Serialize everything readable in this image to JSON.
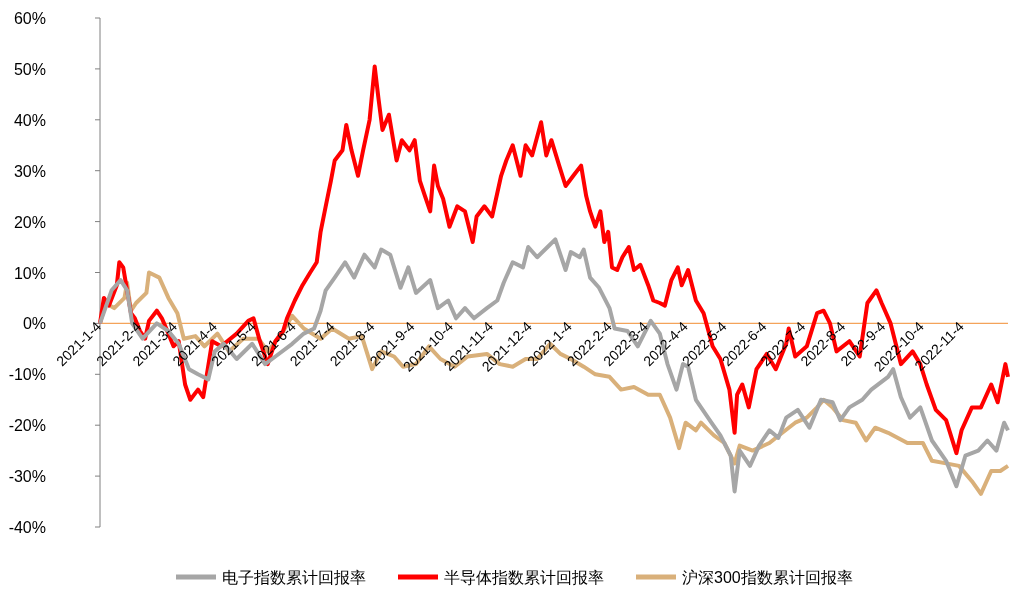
{
  "chart_data": {
    "type": "line",
    "xlim": [
      "2021-01-04",
      "2022-12-09"
    ],
    "xticks": [
      {
        "value": "2021-01-04",
        "label": "2021-1-4"
      },
      {
        "value": "2021-02-04",
        "label": "2021-2-4"
      },
      {
        "value": "2021-03-04",
        "label": "2021-3-4"
      },
      {
        "value": "2021-04-04",
        "label": "2021-4-4"
      },
      {
        "value": "2021-05-04",
        "label": "2021-5-4"
      },
      {
        "value": "2021-06-04",
        "label": "2021-6-4"
      },
      {
        "value": "2021-07-04",
        "label": "2021-7-4"
      },
      {
        "value": "2021-08-04",
        "label": "2021-8-4"
      },
      {
        "value": "2021-09-04",
        "label": "2021-9-4"
      },
      {
        "value": "2021-10-04",
        "label": "2021-10-4"
      },
      {
        "value": "2021-11-04",
        "label": "2021-11-4"
      },
      {
        "value": "2021-12-04",
        "label": "2021-12-4"
      },
      {
        "value": "2022-01-04",
        "label": "2022-1-4"
      },
      {
        "value": "2022-02-04",
        "label": "2022-2-4"
      },
      {
        "value": "2022-03-04",
        "label": "2022-3-4"
      },
      {
        "value": "2022-04-04",
        "label": "2022-4-4"
      },
      {
        "value": "2022-05-04",
        "label": "2022-5-4"
      },
      {
        "value": "2022-06-04",
        "label": "2022-6-4"
      },
      {
        "value": "2022-07-04",
        "label": "2022-7-4"
      },
      {
        "value": "2022-08-04",
        "label": "2022-8-4"
      },
      {
        "value": "2022-09-04",
        "label": "2022-9-4"
      },
      {
        "value": "2022-10-04",
        "label": "2022-10-4"
      },
      {
        "value": "2022-11-04",
        "label": "2022-11-4"
      }
    ],
    "ylim": [
      -40,
      60
    ],
    "yticks": [
      {
        "value": -40,
        "label": "-40%"
      },
      {
        "value": -30,
        "label": "-30%"
      },
      {
        "value": -20,
        "label": "-20%"
      },
      {
        "value": -10,
        "label": "-10%"
      },
      {
        "value": 0,
        "label": "0%"
      },
      {
        "value": 10,
        "label": "10%"
      },
      {
        "value": 20,
        "label": "20%"
      },
      {
        "value": 30,
        "label": "30%"
      },
      {
        "value": 40,
        "label": "40%"
      },
      {
        "value": 50,
        "label": "50%"
      },
      {
        "value": 60,
        "label": "60%"
      }
    ],
    "grid": false,
    "legend": "bottom",
    "marker": "none",
    "line_style": "solid",
    "series": [
      {
        "name": "电子指数累计回报率",
        "color": "#a6a6a6",
        "x": [
          "2021-01-04",
          "2021-01-13",
          "2021-01-20",
          "2021-01-25",
          "2021-01-29",
          "2021-02-06",
          "2021-02-17",
          "2021-02-26",
          "2021-03-06",
          "2021-03-14",
          "2021-03-21",
          "2021-03-29",
          "2021-04-03",
          "2021-04-10",
          "2021-04-20",
          "2021-05-02",
          "2021-05-12",
          "2021-05-20",
          "2021-06-02",
          "2021-06-11",
          "2021-06-19",
          "2021-06-24",
          "2021-06-28",
          "2021-07-05",
          "2021-07-13",
          "2021-07-20",
          "2021-07-28",
          "2021-08-05",
          "2021-08-10",
          "2021-08-17",
          "2021-08-25",
          "2021-08-31",
          "2021-09-06",
          "2021-09-17",
          "2021-09-23",
          "2021-10-01",
          "2021-10-07",
          "2021-10-14",
          "2021-10-21",
          "2021-10-31",
          "2021-11-08",
          "2021-11-13",
          "2021-11-20",
          "2021-11-28",
          "2021-12-02",
          "2021-12-09",
          "2021-12-17",
          "2021-12-23",
          "2021-12-31",
          "2022-01-04",
          "2022-01-11",
          "2022-01-14",
          "2022-01-19",
          "2022-01-26",
          "2022-02-03",
          "2022-02-07",
          "2022-02-17",
          "2022-02-25",
          "2022-03-07",
          "2022-03-14",
          "2022-03-20",
          "2022-03-27",
          "2022-04-01",
          "2022-04-05",
          "2022-04-11",
          "2022-04-23",
          "2022-04-30",
          "2022-05-08",
          "2022-05-11",
          "2022-05-15",
          "2022-05-23",
          "2022-05-30",
          "2022-06-07",
          "2022-06-14",
          "2022-06-20",
          "2022-06-29",
          "2022-07-08",
          "2022-07-17",
          "2022-07-26",
          "2022-08-01",
          "2022-08-08",
          "2022-08-18",
          "2022-08-25",
          "2022-09-07",
          "2022-09-11",
          "2022-09-17",
          "2022-09-24",
          "2022-10-02",
          "2022-10-11",
          "2022-10-22",
          "2022-10-30",
          "2022-11-06",
          "2022-11-16",
          "2022-11-23",
          "2022-11-30",
          "2022-12-06",
          "2022-12-09"
        ],
        "values": [
          0,
          6.5,
          8.5,
          6.5,
          0,
          -3,
          0,
          -1.5,
          -4,
          -9,
          -10,
          -11,
          -5.5,
          -4,
          -7,
          -4,
          -8,
          -6.5,
          -4,
          -2,
          -1,
          2.5,
          6.5,
          9,
          12,
          9,
          13.5,
          11,
          14.5,
          13.5,
          7,
          11,
          6,
          8.5,
          3,
          4.5,
          1,
          3,
          1,
          3,
          4.5,
          8,
          12,
          11,
          15,
          13,
          15,
          16.5,
          10.5,
          14,
          13,
          14.5,
          9,
          7,
          3,
          -1,
          -1.5,
          -4.5,
          0.5,
          -2,
          -8,
          -13,
          -8,
          -8.5,
          -15,
          -19.5,
          -22,
          -26,
          -33,
          -25,
          -28,
          -24,
          -21,
          -22.5,
          -18.5,
          -17,
          -20.5,
          -15,
          -15.5,
          -19,
          -16.5,
          -15,
          -13,
          -10.5,
          -9,
          -14.5,
          -18.5,
          -16.5,
          -23,
          -27,
          -32,
          -26,
          -25,
          -23,
          -25,
          -19.5,
          -21
        ]
      },
      {
        "name": "半导体指数累计回报率",
        "color": "#ff0000",
        "x": [
          "2021-01-04",
          "2021-01-07",
          "2021-01-11",
          "2021-01-17",
          "2021-01-19",
          "2021-01-22",
          "2021-01-25",
          "2021-01-28",
          "2021-01-31",
          "2021-02-04",
          "2021-02-08",
          "2021-02-11",
          "2021-02-17",
          "2021-02-21",
          "2021-02-26",
          "2021-03-02",
          "2021-03-06",
          "2021-03-11",
          "2021-03-15",
          "2021-03-21",
          "2021-03-25",
          "2021-04-01",
          "2021-04-08",
          "2021-04-20",
          "2021-04-29",
          "2021-05-03",
          "2021-05-08",
          "2021-05-14",
          "2021-05-20",
          "2021-05-26",
          "2021-05-29",
          "2021-06-04",
          "2021-06-10",
          "2021-06-16",
          "2021-06-21",
          "2021-06-24",
          "2021-06-28",
          "2021-07-02",
          "2021-07-05",
          "2021-07-11",
          "2021-07-14",
          "2021-07-18",
          "2021-07-23",
          "2021-07-27",
          "2021-08-01",
          "2021-08-05",
          "2021-08-08",
          "2021-08-11",
          "2021-08-16",
          "2021-08-22",
          "2021-08-26",
          "2021-09-01",
          "2021-09-05",
          "2021-09-09",
          "2021-09-13",
          "2021-09-17",
          "2021-09-20",
          "2021-09-23",
          "2021-09-27",
          "2021-10-02",
          "2021-10-08",
          "2021-10-14",
          "2021-10-20",
          "2021-10-23",
          "2021-10-29",
          "2021-11-04",
          "2021-11-11",
          "2021-11-15",
          "2021-11-20",
          "2021-11-26",
          "2021-11-30",
          "2021-12-05",
          "2021-12-12",
          "2021-12-16",
          "2021-12-20",
          "2021-12-26",
          "2021-12-31",
          "2022-01-06",
          "2022-01-12",
          "2022-01-16",
          "2022-01-19",
          "2022-01-23",
          "2022-01-27",
          "2022-01-30",
          "2022-02-02",
          "2022-02-05",
          "2022-02-09",
          "2022-02-13",
          "2022-02-18",
          "2022-02-22",
          "2022-02-27",
          "2022-03-05",
          "2022-03-09",
          "2022-03-14",
          "2022-03-18",
          "2022-03-23",
          "2022-03-28",
          "2022-03-31",
          "2022-04-05",
          "2022-04-11",
          "2022-04-17",
          "2022-04-24",
          "2022-04-30",
          "2022-05-07",
          "2022-05-11",
          "2022-05-13",
          "2022-05-17",
          "2022-05-22",
          "2022-05-28",
          "2022-06-05",
          "2022-06-12",
          "2022-06-20",
          "2022-06-22",
          "2022-06-27",
          "2022-07-06",
          "2022-07-14",
          "2022-07-19",
          "2022-07-24",
          "2022-07-29",
          "2022-08-08",
          "2022-08-16",
          "2022-08-22",
          "2022-08-29",
          "2022-09-02",
          "2022-09-09",
          "2022-09-17",
          "2022-09-26",
          "2022-10-02",
          "2022-10-07",
          "2022-10-14",
          "2022-10-22",
          "2022-10-30",
          "2022-11-03",
          "2022-11-11",
          "2022-11-18",
          "2022-11-26",
          "2022-12-01",
          "2022-12-07",
          "2022-12-09"
        ],
        "values": [
          0,
          5,
          3.5,
          7.5,
          12,
          11,
          6.5,
          2,
          1,
          -1.5,
          -3,
          0.5,
          2.5,
          1,
          -2,
          -4.5,
          -3.5,
          -12,
          -15,
          -13,
          -14.5,
          -3.5,
          -4.5,
          -2,
          0.5,
          1,
          -3.5,
          -8,
          -3.5,
          -1.5,
          1,
          4.5,
          7.5,
          10,
          12,
          18,
          23,
          28,
          32,
          34,
          39,
          34,
          29,
          34,
          40,
          50.5,
          44,
          38,
          41,
          32,
          36,
          34,
          36,
          28,
          25,
          22,
          31,
          27,
          24.5,
          19,
          23,
          22,
          16,
          21,
          23,
          21,
          29,
          32,
          35,
          29,
          35,
          33,
          39.5,
          33,
          36,
          31,
          27,
          29,
          31,
          25,
          22,
          19,
          22,
          16,
          18,
          11,
          10.5,
          13,
          15,
          10.5,
          11.5,
          7.5,
          4.5,
          4,
          3.5,
          8.5,
          11,
          7.5,
          10.5,
          4.5,
          2,
          -4.5,
          -7,
          -13,
          -21.5,
          -14,
          -12,
          -16.5,
          -9,
          -6,
          -9,
          -4,
          -1,
          -6.5,
          -4.5,
          2,
          2.5,
          0,
          -5.5,
          -3.5,
          -6.5,
          4,
          6.5,
          4,
          0,
          -8,
          -5.5,
          -8,
          -12,
          -17,
          -19,
          -25.5,
          -21,
          -16.5,
          -16.5,
          -12,
          -15.5,
          -8,
          -10.5
        ]
      },
      {
        "name": "沪深300指数累计回报率",
        "color": "#d9b07a",
        "x": [
          "2021-01-04",
          "2021-01-08",
          "2021-01-15",
          "2021-01-23",
          "2021-01-25",
          "2021-01-28",
          "2021-02-01",
          "2021-02-09",
          "2021-02-11",
          "2021-02-19",
          "2021-02-26",
          "2021-03-05",
          "2021-03-10",
          "2021-03-19",
          "2021-03-26",
          "2021-04-05",
          "2021-04-14",
          "2021-04-25",
          "2021-05-07",
          "2021-05-14",
          "2021-05-25",
          "2021-06-02",
          "2021-06-11",
          "2021-06-24",
          "2021-07-03",
          "2021-07-16",
          "2021-07-26",
          "2021-08-03",
          "2021-08-10",
          "2021-08-20",
          "2021-08-27",
          "2021-09-06",
          "2021-09-16",
          "2021-09-25",
          "2021-10-06",
          "2021-10-16",
          "2021-10-31",
          "2021-11-10",
          "2021-11-20",
          "2021-11-30",
          "2021-12-09",
          "2021-12-19",
          "2021-12-27",
          "2022-01-04",
          "2022-01-14",
          "2022-01-23",
          "2022-02-03",
          "2022-02-12",
          "2022-02-22",
          "2022-03-05",
          "2022-03-14",
          "2022-03-22",
          "2022-03-29",
          "2022-04-03",
          "2022-04-11",
          "2022-04-15",
          "2022-04-25",
          "2022-05-03",
          "2022-05-11",
          "2022-05-15",
          "2022-05-25",
          "2022-06-07",
          "2022-06-17",
          "2022-06-27",
          "2022-07-06",
          "2022-07-14",
          "2022-07-19",
          "2022-07-26",
          "2022-08-03",
          "2022-08-13",
          "2022-08-21",
          "2022-08-28",
          "2022-09-07",
          "2022-09-22",
          "2022-10-04",
          "2022-10-11",
          "2022-10-22",
          "2022-11-01",
          "2022-11-11",
          "2022-11-18",
          "2022-11-26",
          "2022-12-03",
          "2022-12-09"
        ],
        "values": [
          0,
          4,
          3,
          5,
          8,
          2.5,
          4,
          6,
          10,
          9,
          5,
          2,
          -3,
          -2.5,
          -4.5,
          -2,
          -5.5,
          -3,
          -3,
          -5.5,
          -2,
          1.5,
          -1,
          -3,
          -1,
          -3,
          -2.5,
          -9,
          -5.5,
          -6.5,
          -8.5,
          -8,
          -4.5,
          -7,
          -8.5,
          -6.5,
          -6,
          -8,
          -8.5,
          -7,
          -7,
          -4,
          -6,
          -7,
          -8.5,
          -10,
          -10.5,
          -13,
          -12.5,
          -14,
          -14,
          -18.5,
          -24.5,
          -19.5,
          -21,
          -19.5,
          -22,
          -23.5,
          -27.5,
          -24,
          -25,
          -23.5,
          -21.5,
          -19.5,
          -18.5,
          -16.5,
          -15,
          -16.5,
          -19,
          -19.5,
          -23,
          -20.5,
          -21.5,
          -23.5,
          -23.5,
          -27,
          -27.5,
          -28,
          -31,
          -33.5,
          -29,
          -29,
          -28
        ]
      }
    ]
  }
}
